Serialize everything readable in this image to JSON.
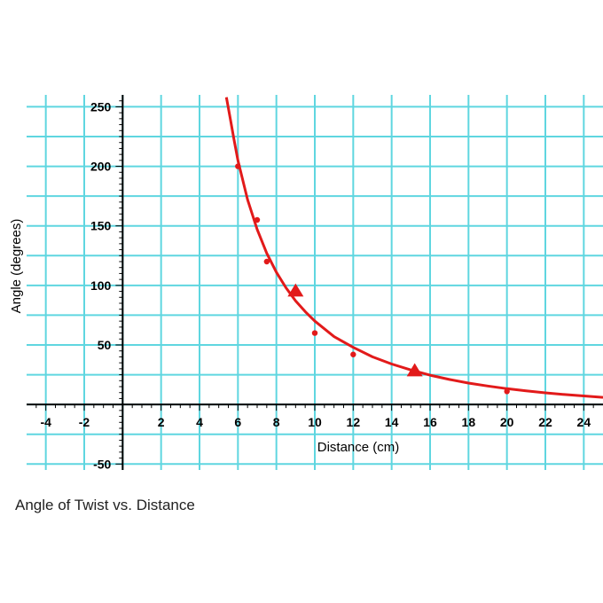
{
  "colors": {
    "grid": "#5fd6e0",
    "series": "#e21a1a",
    "axis": "#000000"
  },
  "caption": "Angle of Twist vs. Distance",
  "chart_data": {
    "type": "scatter",
    "title": "",
    "xlabel": "Distance  (cm)",
    "ylabel": "Angle (degrees)",
    "xlim": [
      -5,
      25
    ],
    "ylim": [
      -55,
      260
    ],
    "x_ticks": [
      -4,
      -2,
      2,
      4,
      6,
      8,
      10,
      12,
      14,
      16,
      18,
      20,
      22,
      24
    ],
    "y_ticks": [
      -50,
      50,
      100,
      150,
      200,
      250
    ],
    "grid": true,
    "series": [
      {
        "marker": "circle",
        "x": [
          6,
          7,
          7.5,
          10,
          12,
          20
        ],
        "y": [
          200,
          155,
          120,
          60,
          42,
          11
        ]
      },
      {
        "marker": "triangle",
        "x": [
          9,
          15.2
        ],
        "y": [
          95,
          28
        ]
      }
    ],
    "fit_curve": {
      "type": "line",
      "x": [
        5.4,
        5.6,
        5.8,
        6,
        6.5,
        7,
        7.5,
        8,
        8.5,
        9,
        9.5,
        10,
        11,
        12,
        13,
        14,
        15,
        16,
        17,
        18,
        19,
        20,
        21,
        22,
        23,
        24,
        25
      ],
      "y": [
        258,
        240,
        222,
        205,
        172,
        147,
        127,
        111,
        98,
        87,
        78,
        70,
        57,
        48,
        40,
        34,
        29,
        24.6,
        21,
        18,
        15.5,
        13.3,
        11.4,
        9.8,
        8.4,
        7.2,
        6
      ]
    }
  }
}
